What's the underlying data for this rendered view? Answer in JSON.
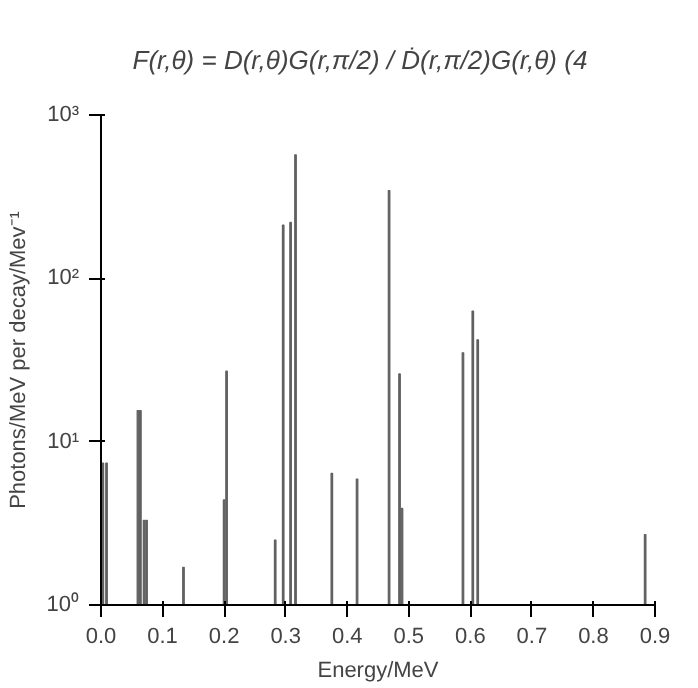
{
  "chart_data": {
    "type": "bar",
    "annotations": [
      "F(r,θ) = D(r,θ)G(r,π/2) / Ḋ(r,π/2)G(r,θ)      (4"
    ],
    "xlabel": "Energy/MeV",
    "ylabel": "Photons/MeV per decay/Mev⁻¹",
    "log": "y",
    "grid": false,
    "x": [
      0.003,
      0.009,
      0.06,
      0.064,
      0.07,
      0.074,
      0.134,
      0.2,
      0.204,
      0.283,
      0.296,
      0.308,
      0.316,
      0.375,
      0.416,
      0.468,
      0.485,
      0.489,
      0.588,
      0.604,
      0.612,
      0.884
    ],
    "values": [
      7.4,
      7.4,
      15.5,
      15.5,
      3.3,
      3.3,
      1.7,
      4.4,
      27,
      2.5,
      212,
      220,
      570,
      6.4,
      5.9,
      345,
      26,
      3.9,
      35,
      63,
      42,
      2.7
    ],
    "color": "#606060",
    "xlim": [
      0,
      0.9
    ],
    "xticks": [
      {
        "value": 0,
        "label": "0.0"
      },
      0.1,
      0.2,
      0.3,
      0.4,
      0.5,
      0.6,
      0.7,
      0.8,
      0.9
    ],
    "ylim": [
      1,
      1000
    ],
    "yticks": [
      {
        "value": 1,
        "label": "10⁰"
      },
      {
        "value": 10,
        "label": "10¹"
      },
      {
        "value": 100,
        "label": "10²"
      },
      {
        "value": 1000,
        "label": "10³"
      }
    ]
  }
}
